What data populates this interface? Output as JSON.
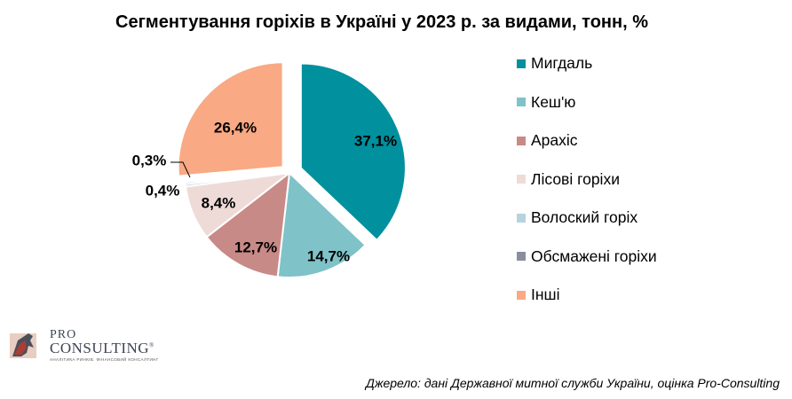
{
  "chart_data": {
    "type": "pie",
    "title": "Сегментування горіхів в Україні у 2023 р. за видами, тонн, %",
    "slices": [
      {
        "name": "Мигдаль",
        "value": 37.1,
        "label": "37,1%",
        "color": "#00909e",
        "exploded": true
      },
      {
        "name": "Кеш'ю",
        "value": 14.7,
        "label": "14,7%",
        "color": "#7fc2c8"
      },
      {
        "name": "Арахіс",
        "value": 12.7,
        "label": "12,7%",
        "color": "#c88a87"
      },
      {
        "name": "Лісові горіхи",
        "value": 8.4,
        "label": "8,4%",
        "color": "#eedbd7"
      },
      {
        "name": "Волоский горіх",
        "value": 0.4,
        "label": "0,4%",
        "color": "#b7d3df"
      },
      {
        "name": "Обсмажені горіхи",
        "value": 0.3,
        "label": "0,3%",
        "color": "#8a8f9e"
      },
      {
        "name": "Інші",
        "value": 26.4,
        "label": "26,4%",
        "color": "#f9a984",
        "exploded": true
      }
    ],
    "legend_position": "right"
  },
  "logo": {
    "pro": "PRO",
    "consulting": "CONSULTING",
    "registered": "®",
    "tagline": "АНАЛІТИКА РИНКІВ. ФІНАНСОВИЙ КОНСАЛТИНГ"
  },
  "source": "Джерело: дані Державної митної служби України, оцінка Pro-Consulting"
}
